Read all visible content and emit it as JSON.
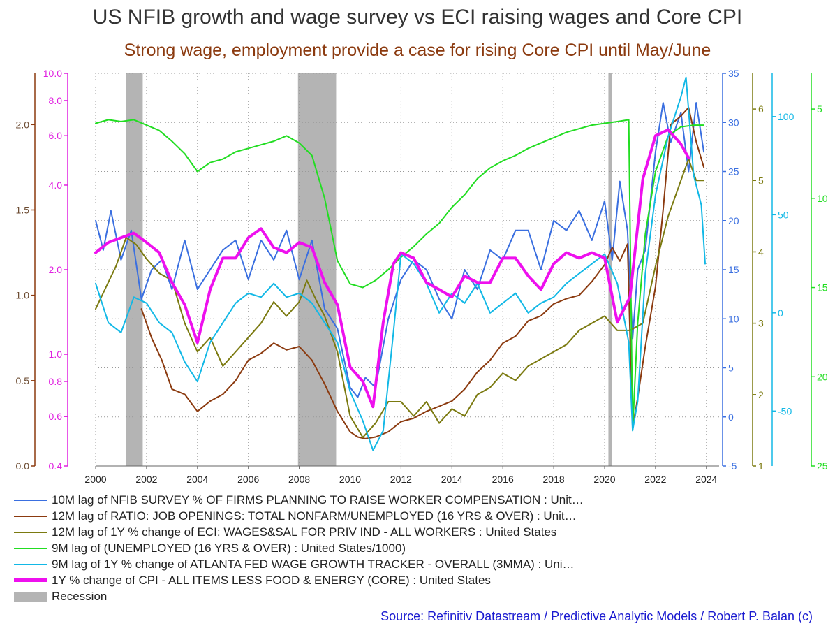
{
  "chart_data": {
    "type": "line",
    "title": "US NFIB growth and wage survey vs ECI raising wages and Core CPI",
    "subtitle": "Strong wage, employment provide a case for rising Core CPI until May/June",
    "source": "Source: Refinitiv Datastream / Predictive Analytic Models / Robert P. Balan (c)",
    "xlim": [
      2000,
      2024.5
    ],
    "x_ticks": [
      2000,
      2002,
      2004,
      2006,
      2008,
      2010,
      2012,
      2014,
      2016,
      2018,
      2020,
      2022,
      2024
    ],
    "x_tick_labels": [
      "2000",
      "2002",
      "2004",
      "2006",
      "2008",
      "2010",
      "2012",
      "2014",
      "2016",
      "2018",
      "2020",
      "2022",
      "2024"
    ],
    "grid": true,
    "recessions": [
      [
        2001.2,
        2001.85
      ],
      [
        2007.95,
        2009.45
      ],
      [
        2020.15,
        2020.3
      ]
    ],
    "axes": [
      {
        "id": "brown",
        "side": "left",
        "color": "#8b3a0f",
        "ylim": [
          0.0,
          2.3
        ],
        "ticks": [
          0.0,
          0.5,
          1.0,
          1.5,
          2.0
        ],
        "tick_labels": [
          "0.0",
          "0.5",
          "1.0",
          "1.5",
          "2.0"
        ],
        "scale": "linear"
      },
      {
        "id": "magenta",
        "side": "left",
        "color": "#e020e0",
        "ylim": [
          0.4,
          10.0
        ],
        "ticks": [
          0.4,
          0.6,
          0.8,
          1.0,
          2.0,
          4.0,
          6.0,
          8.0,
          10.0
        ],
        "tick_labels": [
          "0.4",
          "0.6",
          "0.8",
          "1.0",
          "2.0",
          "4.0",
          "6.0",
          "8.0",
          "10.0"
        ],
        "scale": "log"
      },
      {
        "id": "blue",
        "side": "right",
        "color": "#3a6fe0",
        "ylim": [
          -5,
          35
        ],
        "ticks": [
          -5,
          0,
          5,
          10,
          15,
          20,
          25,
          30,
          35
        ],
        "tick_labels": [
          "-5",
          "0",
          "5",
          "10",
          "15",
          "20",
          "25",
          "30",
          "35"
        ],
        "scale": "linear"
      },
      {
        "id": "olive",
        "side": "right",
        "color": "#7b7a10",
        "ylim": [
          1.0,
          6.5
        ],
        "ticks": [
          1,
          2,
          3,
          4,
          5,
          6
        ],
        "tick_labels": [
          "1",
          "2",
          "3",
          "4",
          "5",
          "6"
        ],
        "scale": "linear"
      },
      {
        "id": "cyan",
        "side": "right",
        "color": "#12b8e6",
        "ylim": [
          -78,
          122
        ],
        "ticks": [
          -50,
          0,
          50,
          100
        ],
        "tick_labels": [
          "-50",
          "0",
          "50",
          "100"
        ],
        "scale": "linear"
      },
      {
        "id": "green",
        "side": "right",
        "color": "#22dd22",
        "ylim": [
          25,
          3
        ],
        "ticks": [
          5,
          10,
          15,
          20,
          25
        ],
        "tick_labels": [
          "5",
          "10",
          "15",
          "20",
          "25"
        ],
        "scale": "linear",
        "inverted": true
      }
    ],
    "series": [
      {
        "name": "10M lag of NFIB SURVEY % OF FIRMS PLANNING TO RAISE WORKER COMPENSATION : Unit…",
        "axis": "blue",
        "color": "#3a6fe0",
        "width": 2,
        "x": [
          2000,
          2000.3,
          2000.6,
          2001,
          2001.4,
          2001.8,
          2002.2,
          2002.6,
          2003,
          2003.5,
          2004,
          2004.5,
          2005,
          2005.5,
          2006,
          2006.5,
          2007,
          2007.5,
          2008,
          2008.5,
          2009,
          2009.5,
          2010,
          2010.3,
          2010.6,
          2011,
          2011.5,
          2012,
          2012.5,
          2013,
          2013.5,
          2014,
          2014.5,
          2015,
          2015.5,
          2016,
          2016.5,
          2017,
          2017.5,
          2018,
          2018.5,
          2019,
          2019.5,
          2020,
          2020.3,
          2020.6,
          2020.9,
          2021.1,
          2021.3,
          2021.6,
          2022,
          2022.3,
          2022.6,
          2023,
          2023.3,
          2023.6,
          2023.9
        ],
        "y": [
          20,
          17,
          21,
          16,
          19,
          12,
          15,
          16,
          13,
          18,
          13,
          15,
          17,
          18,
          14,
          18,
          16,
          19,
          14,
          18,
          11,
          9,
          3,
          2,
          4,
          3,
          10,
          14,
          16,
          15,
          12,
          10,
          15,
          13,
          17,
          16,
          19,
          19,
          15,
          20,
          19,
          21,
          18,
          22,
          16,
          24,
          19,
          8,
          15,
          17,
          27,
          32,
          28,
          31,
          25,
          32,
          27
        ]
      },
      {
        "name": "12M lag of RATIO: JOB OPENINGS: TOTAL NONFARM/UNEMPLOYED (16 YRS & OVER) : Unit…",
        "axis": "brown",
        "color": "#8b3a0f",
        "width": 2,
        "x": [
          2001.8,
          2002.2,
          2002.6,
          2003,
          2003.5,
          2004,
          2004.5,
          2005,
          2005.5,
          2006,
          2006.5,
          2007,
          2007.5,
          2008,
          2008.5,
          2009,
          2009.5,
          2010,
          2010.3,
          2010.6,
          2011,
          2011.5,
          2012,
          2012.5,
          2013,
          2013.5,
          2014,
          2014.5,
          2015,
          2015.5,
          2016,
          2016.5,
          2017,
          2017.5,
          2018,
          2018.5,
          2019,
          2019.5,
          2020,
          2020.3,
          2020.6,
          2020.9,
          2021.1,
          2021.3,
          2021.6,
          2022,
          2022.3,
          2022.6,
          2023,
          2023.3,
          2023.6,
          2023.9
        ],
        "y": [
          0.92,
          0.75,
          0.62,
          0.45,
          0.42,
          0.32,
          0.38,
          0.42,
          0.5,
          0.62,
          0.66,
          0.72,
          0.68,
          0.7,
          0.62,
          0.48,
          0.32,
          0.2,
          0.17,
          0.16,
          0.17,
          0.2,
          0.26,
          0.28,
          0.32,
          0.35,
          0.38,
          0.45,
          0.55,
          0.62,
          0.72,
          0.76,
          0.85,
          0.88,
          0.95,
          0.98,
          1.0,
          1.08,
          1.18,
          1.28,
          1.2,
          1.3,
          0.22,
          0.4,
          0.7,
          1.05,
          1.5,
          2.0,
          2.05,
          2.1,
          1.9,
          1.75
        ]
      },
      {
        "name": "12M lag of 1Y % change of ECI: WAGES&SAL FOR PRIV IND - ALL WORKERS : United States",
        "axis": "olive",
        "color": "#7b7a10",
        "width": 2,
        "x": [
          2000,
          2000.4,
          2000.8,
          2001.2,
          2001.6,
          2002,
          2002.5,
          2003,
          2003.5,
          2004,
          2004.5,
          2005,
          2005.5,
          2006,
          2006.5,
          2007,
          2007.5,
          2008,
          2008.3,
          2008.7,
          2009,
          2009.5,
          2010,
          2010.5,
          2011,
          2011.5,
          2012,
          2012.5,
          2013,
          2013.5,
          2014,
          2014.5,
          2015,
          2015.5,
          2016,
          2016.5,
          2017,
          2017.5,
          2018,
          2018.5,
          2019,
          2019.5,
          2020,
          2020.5,
          2021,
          2021.5,
          2022,
          2022.5,
          2023,
          2023.3,
          2023.6,
          2023.9
        ],
        "y": [
          3.2,
          3.5,
          3.8,
          4.2,
          4.1,
          3.9,
          3.7,
          3.6,
          3.0,
          2.6,
          2.8,
          2.4,
          2.6,
          2.8,
          3.0,
          3.3,
          3.1,
          3.3,
          3.6,
          3.3,
          3.1,
          2.6,
          1.7,
          1.4,
          1.6,
          1.9,
          1.9,
          1.7,
          1.9,
          1.6,
          1.8,
          1.7,
          2.0,
          2.1,
          2.3,
          2.2,
          2.4,
          2.5,
          2.6,
          2.7,
          2.9,
          3.0,
          3.1,
          2.9,
          2.9,
          3.0,
          3.8,
          4.5,
          5.0,
          5.3,
          5.0,
          5.0
        ]
      },
      {
        "name": "9M lag of (UNEMPLOYED (16 YRS & OVER) : United States/1000)",
        "axis": "green",
        "color": "#22dd22",
        "width": 2,
        "x": [
          2000,
          2000.5,
          2001,
          2001.5,
          2002,
          2002.5,
          2003,
          2003.5,
          2004,
          2004.5,
          2005,
          2005.5,
          2006,
          2006.5,
          2007,
          2007.5,
          2008,
          2008.5,
          2009,
          2009.5,
          2010,
          2010.5,
          2011,
          2011.5,
          2012,
          2012.5,
          2013,
          2013.5,
          2014,
          2014.5,
          2015,
          2015.5,
          2016,
          2016.5,
          2017,
          2017.5,
          2018,
          2018.5,
          2019,
          2019.5,
          2020,
          2020.5,
          2020.95,
          2021.1,
          2021.3,
          2021.6,
          2022,
          2022.5,
          2023,
          2023.5,
          2023.9
        ],
        "y": [
          5.8,
          5.6,
          5.7,
          5.6,
          5.9,
          6.2,
          6.8,
          7.5,
          8.5,
          8.0,
          7.8,
          7.4,
          7.2,
          7.0,
          6.8,
          6.5,
          6.9,
          7.6,
          10.0,
          13.5,
          14.8,
          15.0,
          14.6,
          14.0,
          13.3,
          12.7,
          12.0,
          11.4,
          10.5,
          9.8,
          8.9,
          8.3,
          7.9,
          7.6,
          7.2,
          6.9,
          6.6,
          6.3,
          6.1,
          5.9,
          5.8,
          5.7,
          5.6,
          23.0,
          17.0,
          12.0,
          8.5,
          6.5,
          6.0,
          5.9,
          5.9
        ]
      },
      {
        "name": "9M lag of 1Y % change of ATLANTA FED WAGE GROWTH TRACKER - OVERALL (3MMA) : Uni…",
        "axis": "cyan",
        "color": "#12b8e6",
        "width": 2,
        "x": [
          2000,
          2000.5,
          2001,
          2001.5,
          2002,
          2002.5,
          2003,
          2003.5,
          2004,
          2004.5,
          2005,
          2005.5,
          2006,
          2006.5,
          2007,
          2007.5,
          2008,
          2008.5,
          2009,
          2009.5,
          2010,
          2010.5,
          2010.9,
          2011.3,
          2011.7,
          2012,
          2012.5,
          2013,
          2013.5,
          2014,
          2014.5,
          2015,
          2015.5,
          2016,
          2016.5,
          2017,
          2017.5,
          2018,
          2018.5,
          2019,
          2019.5,
          2020,
          2020.5,
          2020.95,
          2021.1,
          2021.3,
          2021.6,
          2022,
          2022.5,
          2023,
          2023.2,
          2023.5,
          2023.8,
          2023.95
        ],
        "y": [
          15,
          -5,
          -10,
          8,
          5,
          -5,
          -10,
          -25,
          -35,
          -15,
          -5,
          5,
          10,
          8,
          15,
          8,
          10,
          5,
          -5,
          -15,
          -40,
          -55,
          -70,
          -60,
          -10,
          30,
          25,
          15,
          0,
          10,
          5,
          15,
          0,
          5,
          10,
          0,
          5,
          8,
          15,
          20,
          25,
          30,
          15,
          -15,
          -60,
          -45,
          20,
          60,
          90,
          110,
          120,
          70,
          55,
          25
        ]
      },
      {
        "name": "1Y % change of CPI - ALL ITEMS LESS FOOD & ENERGY (CORE) : United States",
        "axis": "magenta",
        "color": "#ee10ee",
        "width": 4,
        "x": [
          2000,
          2000.5,
          2001,
          2001.5,
          2002,
          2002.5,
          2003,
          2003.5,
          2004,
          2004.5,
          2005,
          2005.5,
          2006,
          2006.5,
          2007,
          2007.5,
          2008,
          2008.5,
          2009,
          2009.5,
          2010,
          2010.5,
          2010.9,
          2011.3,
          2011.7,
          2012,
          2012.5,
          2013,
          2013.5,
          2014,
          2014.5,
          2015,
          2015.5,
          2016,
          2016.5,
          2017,
          2017.5,
          2018,
          2018.5,
          2019,
          2019.5,
          2020,
          2020.5,
          2021,
          2021.5,
          2022,
          2022.5,
          2023,
          2023.3
        ],
        "y": [
          2.3,
          2.5,
          2.6,
          2.7,
          2.5,
          2.3,
          1.8,
          1.5,
          1.1,
          1.7,
          2.2,
          2.2,
          2.6,
          2.8,
          2.4,
          2.3,
          2.5,
          2.4,
          1.8,
          1.5,
          0.9,
          0.8,
          0.65,
          1.3,
          2.1,
          2.3,
          2.2,
          1.8,
          1.7,
          1.6,
          1.9,
          1.8,
          1.8,
          2.2,
          2.2,
          1.9,
          1.7,
          2.1,
          2.3,
          2.2,
          2.3,
          2.2,
          1.3,
          1.6,
          4.2,
          6.0,
          6.3,
          5.6,
          5.0
        ]
      }
    ],
    "legend": {
      "placement": "bottom-left",
      "entries": [
        {
          "label": "10M lag of NFIB SURVEY % OF FIRMS PLANNING TO RAISE WORKER COMPENSATION : Unit…",
          "color": "#3a6fe0",
          "style": "line"
        },
        {
          "label": "12M lag of RATIO: JOB OPENINGS: TOTAL NONFARM/UNEMPLOYED (16 YRS & OVER) : Unit…",
          "color": "#8b3a0f",
          "style": "line"
        },
        {
          "label": "12M lag of 1Y % change of ECI: WAGES&SAL FOR PRIV IND - ALL WORKERS : United States",
          "color": "#7b7a10",
          "style": "line"
        },
        {
          "label": "9M lag of (UNEMPLOYED (16 YRS & OVER) : United States/1000)",
          "color": "#22dd22",
          "style": "line"
        },
        {
          "label": "9M lag of 1Y % change of ATLANTA FED WAGE GROWTH TRACKER - OVERALL (3MMA) : Uni…",
          "color": "#12b8e6",
          "style": "line"
        },
        {
          "label": "1Y % change of CPI - ALL ITEMS LESS FOOD & ENERGY (CORE) : United States",
          "color": "#ee10ee",
          "style": "thick-line"
        },
        {
          "label": "Recession",
          "color": "#b4b4b4",
          "style": "block"
        }
      ]
    },
    "colors": {
      "title": "#333333",
      "subtitle": "#8b3a0f",
      "source": "#1a1ad0",
      "grid": "#9a9a9a",
      "recession": "#b4b4b4"
    }
  }
}
